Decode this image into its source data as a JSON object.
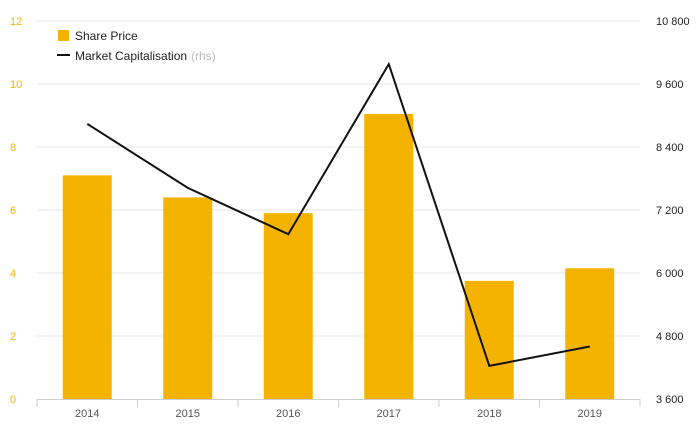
{
  "chart_data": {
    "type": "bar",
    "categories": [
      "2014",
      "2015",
      "2016",
      "2017",
      "2018",
      "2019"
    ],
    "series": [
      {
        "name": "Share Price",
        "type": "bar",
        "axis": "left",
        "color": "#F5B301",
        "values": [
          7.1,
          6.4,
          5.9,
          9.05,
          3.75,
          4.15
        ]
      },
      {
        "name": "Market Capitalisation",
        "name_suffix": "(rhs)",
        "type": "line",
        "axis": "right",
        "color": "#111111",
        "values": [
          8840,
          7620,
          6740,
          9980,
          4230,
          4600
        ]
      }
    ],
    "y_left": {
      "range": [
        0,
        12
      ],
      "ticks": [
        "0",
        "2",
        "4",
        "6",
        "8",
        "10",
        "12"
      ],
      "tick_color": "#F5B301"
    },
    "y_right": {
      "range": [
        3600,
        10800
      ],
      "ticks": [
        "3 600",
        "4 800",
        "6 000",
        "7 200",
        "8 400",
        "9 600",
        "10 800"
      ]
    },
    "grid": "horizontal",
    "legend_position": "top-left",
    "grid_color": "#e6e6e6"
  }
}
